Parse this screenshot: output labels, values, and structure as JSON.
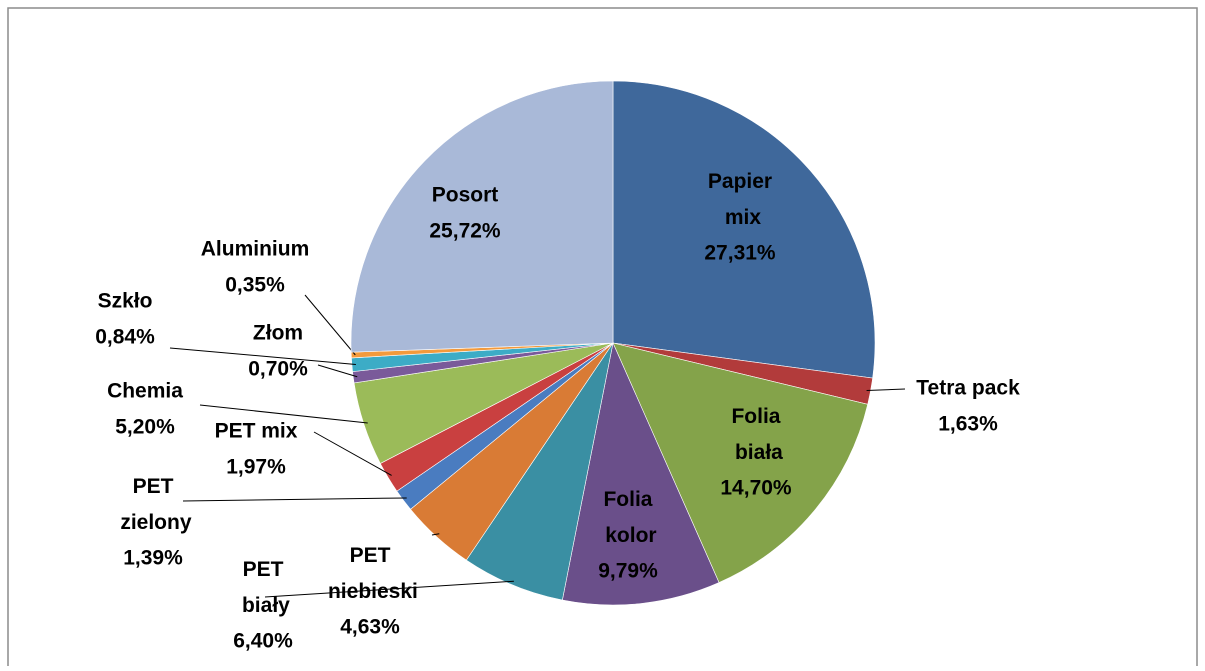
{
  "chart_data": {
    "type": "pie",
    "categories": [
      "Papier mix",
      "Tetra pack",
      "Folia biała",
      "Folia kolor",
      "PET biały",
      "PET niebieski",
      "PET zielony",
      "PET mix",
      "Chemia",
      "Złom",
      "Szkło",
      "Aluminium",
      "Posort"
    ],
    "values": [
      27.31,
      1.63,
      14.7,
      9.79,
      6.4,
      4.63,
      1.39,
      1.97,
      5.2,
      0.7,
      0.84,
      0.35,
      25.72
    ],
    "value_labels": [
      "27,31%",
      "1,63%",
      "14,70%",
      "9,79%",
      "6,40%",
      "4,63%",
      "1,39%",
      "1,97%",
      "5,20%",
      "0,70%",
      "0,84%",
      "0,35%",
      "25,72%"
    ],
    "colors": [
      "#3f689b",
      "#b23b3b",
      "#84a34a",
      "#6a4f8a",
      "#3a8fa3",
      "#d97b35",
      "#4a7cc0",
      "#c94040",
      "#9bbb59",
      "#7a5a9a",
      "#3cacc6",
      "#f39a3c",
      "#a9b9d8"
    ]
  }
}
